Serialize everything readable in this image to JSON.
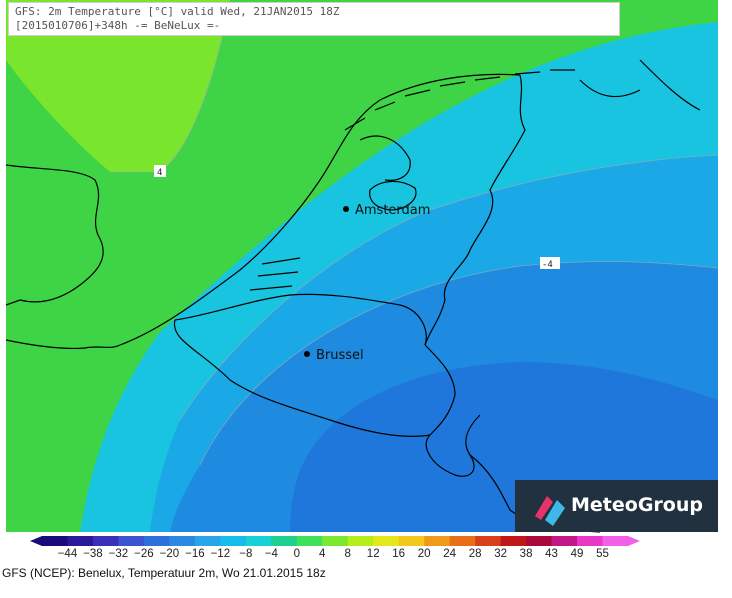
{
  "header": {
    "line1": "GFS: 2m Temperature [°C] valid Wed, 21JAN2015 18Z",
    "line2": "[2015010706]+348h -= BeNeLux =-"
  },
  "map": {
    "cities": [
      {
        "name": "Amsterdam"
      },
      {
        "name": "Brussel"
      }
    ],
    "contour_labels": [
      "4",
      "-4"
    ]
  },
  "logo": {
    "text": "MeteoGroup"
  },
  "legend": {
    "ticks": [
      "-44",
      "-38",
      "-32",
      "-26",
      "-20",
      "-16",
      "-12",
      "-8",
      "-4",
      "0",
      "4",
      "8",
      "12",
      "16",
      "20",
      "24",
      "28",
      "32",
      "38",
      "43",
      "49",
      "55"
    ],
    "colors": [
      "#1a0a7a",
      "#2a1a9a",
      "#3a2fb8",
      "#3c52d0",
      "#2f6fdc",
      "#2a8ae2",
      "#2aa6e8",
      "#16bdea",
      "#18d0d8",
      "#1ed090",
      "#3fe05a",
      "#7ce830",
      "#b6ee1a",
      "#e4e81a",
      "#f4c81a",
      "#f09a1a",
      "#e86e18",
      "#d8401a",
      "#c01818",
      "#a80a3a",
      "#c0188a",
      "#e838c8",
      "#f060e8"
    ]
  },
  "caption": "GFS (NCEP): Benelux, Temperatuur 2m, Wo 21.01.2015 18z"
}
